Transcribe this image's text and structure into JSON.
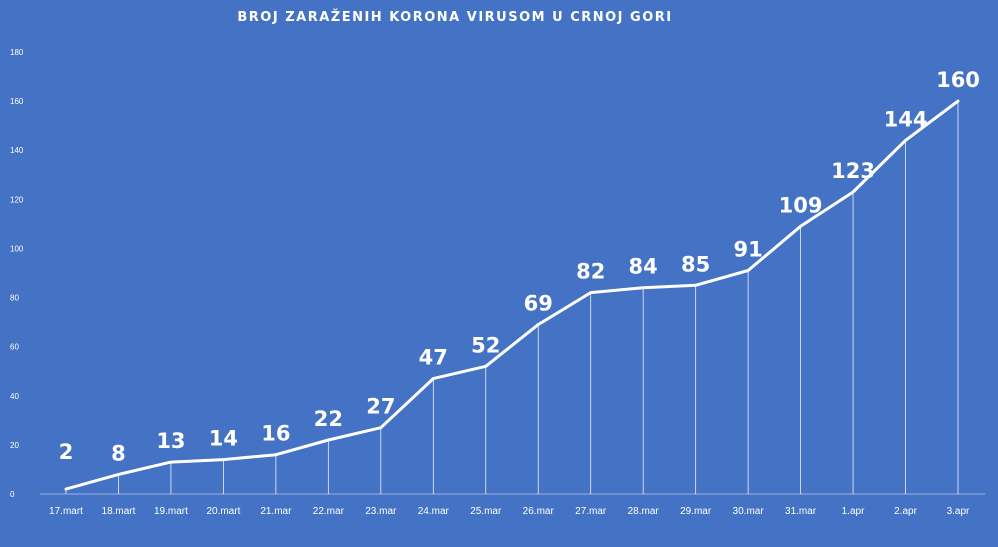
{
  "chart_data": {
    "type": "line",
    "title": "BROJ ZARAŽENIH KORONA VIRUSOM U CRNOJ GORI",
    "categories": [
      "17.mart",
      "18.mart",
      "19.mart",
      "20.mart",
      "21.mar",
      "22.mar",
      "23.mar",
      "24.mar",
      "25.mar",
      "26.mar",
      "27.mar",
      "28.mar",
      "29.mar",
      "30.mar",
      "31.mar",
      "1.apr",
      "2.apr",
      "3.apr"
    ],
    "series": [
      {
        "values": [
          2,
          8,
          13,
          14,
          16,
          22,
          27,
          47,
          52,
          69,
          82,
          84,
          85,
          91,
          109,
          123,
          144,
          160
        ]
      }
    ],
    "yticks": [
      0,
      20,
      40,
      60,
      80,
      100,
      120,
      140,
      160,
      180
    ],
    "ylim": [
      0,
      180
    ],
    "grid": false,
    "drop_lines": true,
    "data_labels": true,
    "colors": {
      "background": "#4472c4",
      "line": "#ffffff",
      "text": "#ffffff"
    }
  }
}
